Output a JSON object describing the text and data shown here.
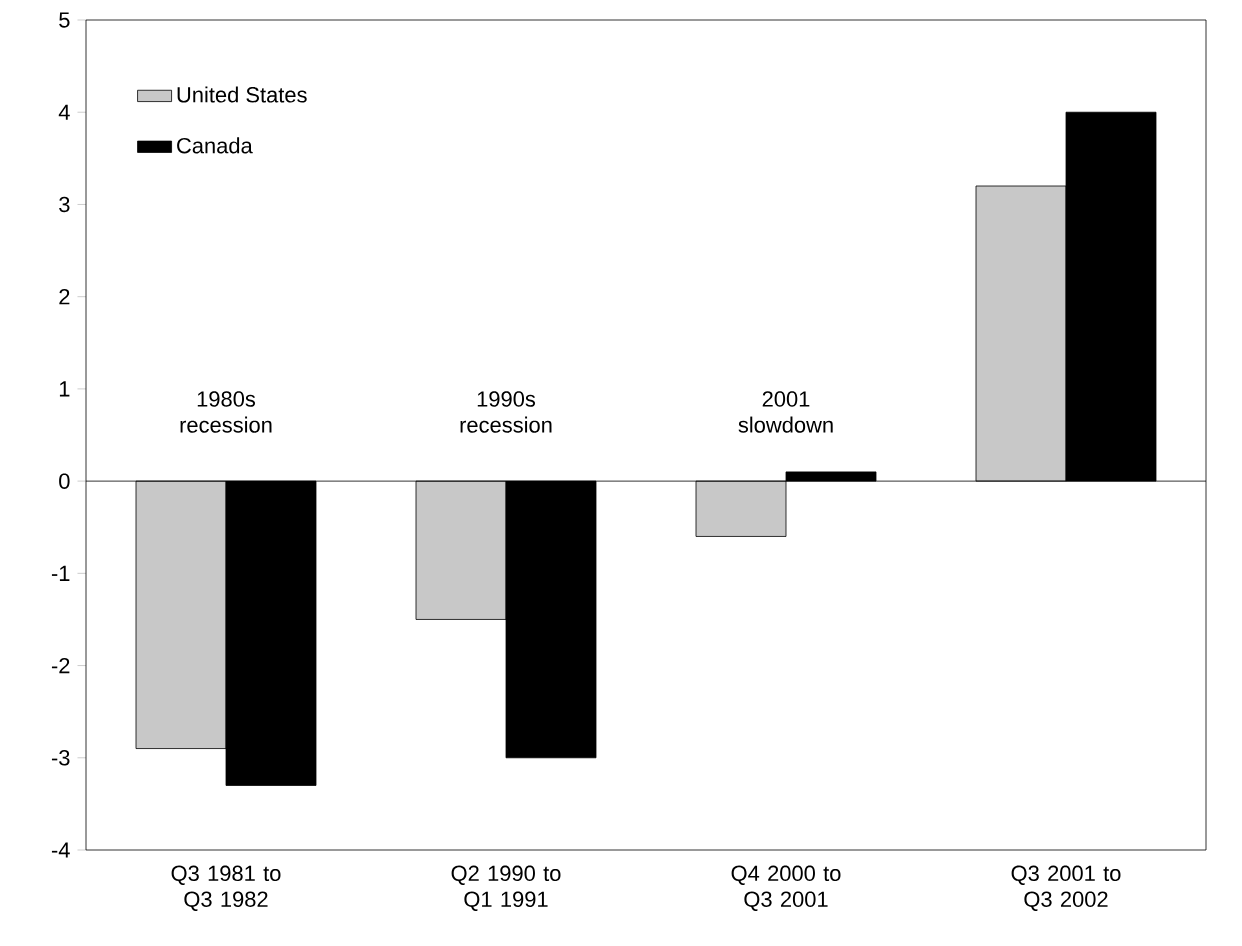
{
  "chart_data": {
    "type": "bar",
    "categories": [
      "Q3 1981 to Q3 1982",
      "Q2 1990 to Q1 1991",
      "Q4 2000 to Q3 2001",
      "Q3 2001 to Q3 2002"
    ],
    "series": [
      {
        "name": "United States",
        "color": "#c8c8c8",
        "values": [
          -2.9,
          -1.5,
          -0.6,
          3.2
        ]
      },
      {
        "name": "Canada",
        "color": "#000000",
        "values": [
          -3.3,
          -3.0,
          0.1,
          4.0
        ]
      }
    ],
    "ylim": [
      -4,
      5
    ],
    "yticks": [
      -4,
      -3,
      -2,
      -1,
      0,
      1,
      2,
      3,
      4,
      5
    ],
    "annotations": [
      "1980s recession",
      "1990s recession",
      "2001 slowdown"
    ],
    "legend": "top left"
  }
}
